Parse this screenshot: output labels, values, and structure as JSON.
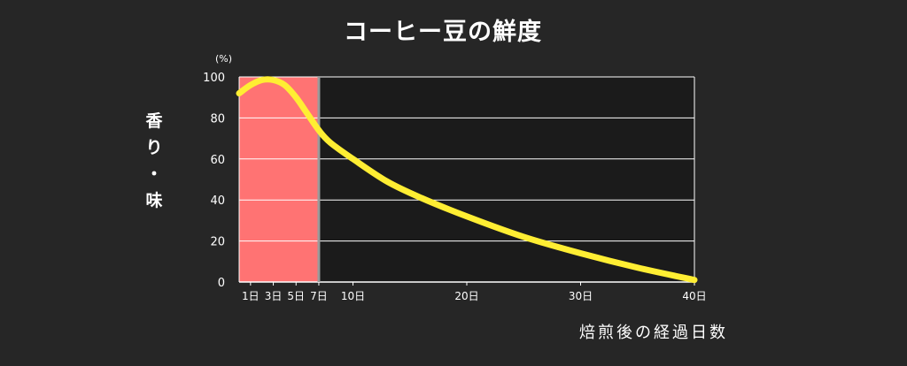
{
  "chart_data": {
    "type": "line",
    "title": "コーヒー豆の鮮度",
    "ylabel": "香り・味",
    "yunit": "(%)",
    "xlabel": "焙煎後の経過日数",
    "ylim": [
      0,
      100
    ],
    "xlim": [
      0,
      40
    ],
    "yticks": [
      0,
      20,
      40,
      60,
      80,
      100
    ],
    "xticks": [
      {
        "x": 1,
        "label": "1日"
      },
      {
        "x": 3,
        "label": "3日"
      },
      {
        "x": 5,
        "label": "5日"
      },
      {
        "x": 7,
        "label": "7日"
      },
      {
        "x": 10,
        "label": "10日"
      },
      {
        "x": 20,
        "label": "20日"
      },
      {
        "x": 30,
        "label": "30日"
      },
      {
        "x": 40,
        "label": "40日"
      }
    ],
    "highlight_range": [
      0,
      7
    ],
    "grid": true,
    "series": [
      {
        "x": [
          0,
          1,
          2,
          3,
          4,
          5,
          6,
          7,
          8,
          10,
          13,
          16,
          20,
          25,
          30,
          35,
          40
        ],
        "y": [
          92,
          96,
          98.5,
          98.5,
          96,
          90,
          82,
          74,
          68,
          60,
          49,
          41,
          32,
          22,
          14,
          7,
          1
        ]
      }
    ],
    "colors": {
      "background": "#262626",
      "plot_background": "#1b1b1b",
      "highlight": "#ff7373",
      "line": "#ffee33",
      "grid": "#ffffff"
    }
  }
}
